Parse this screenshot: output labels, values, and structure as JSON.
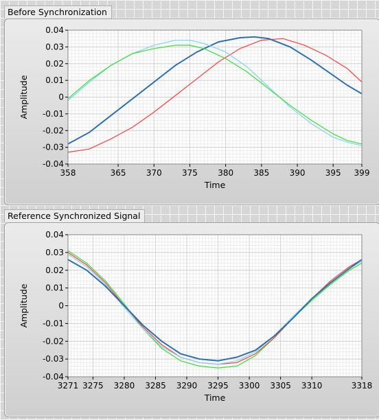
{
  "charts": [
    {
      "label": "Before Synchronization",
      "chart_data": {
        "type": "line",
        "xlabel": "Time",
        "ylabel": "Amplitude",
        "xlim": [
          358,
          399
        ],
        "ylim": [
          -0.04,
          0.04
        ],
        "x_ticks": [
          "358",
          "365",
          "370",
          "375",
          "380",
          "385",
          "390",
          "395",
          "399"
        ],
        "y_ticks": [
          "0.04",
          "0.03",
          "0.02",
          "0.01",
          "0",
          "-0.01",
          "-0.02",
          "-0.03",
          "-0.04"
        ],
        "grid": true,
        "series": [
          {
            "color": "#ff3b3b",
            "x": [
              358,
              361,
              364,
              367,
              370,
              373,
              376,
              379,
              382,
              385,
              388,
              391,
              394,
              397,
              399
            ],
            "y": [
              -0.033,
              -0.031,
              -0.025,
              -0.018,
              -0.009,
              0.001,
              0.011,
              0.021,
              0.029,
              0.034,
              0.035,
              0.031,
              0.025,
              0.017,
              0.009
            ]
          },
          {
            "color": "#2e6fb0",
            "x": [
              358,
              361,
              364,
              367,
              370,
              373,
              376,
              379,
              382,
              384,
              386,
              389,
              392,
              395,
              397,
              399
            ],
            "y": [
              -0.028,
              -0.021,
              -0.011,
              -0.001,
              0.009,
              0.019,
              0.027,
              0.033,
              0.0355,
              0.036,
              0.035,
              0.03,
              0.022,
              0.013,
              0.007,
              0.002
            ]
          },
          {
            "color": "#7fd4f7",
            "x": [
              358,
              361,
              364,
              367,
              370,
              373,
              375,
              377,
              380,
              383,
              386,
              389,
              392,
              395,
              397,
              399
            ],
            "y": [
              -0.002,
              0.009,
              0.019,
              0.026,
              0.031,
              0.034,
              0.034,
              0.032,
              0.027,
              0.018,
              0.006,
              -0.006,
              -0.016,
              -0.024,
              -0.027,
              -0.029
            ]
          },
          {
            "color": "#35e035",
            "x": [
              358,
              361,
              364,
              367,
              370,
              373,
              375,
              377,
              380,
              383,
              386,
              389,
              392,
              395,
              397,
              399
            ],
            "y": [
              -0.001,
              0.01,
              0.019,
              0.026,
              0.029,
              0.031,
              0.031,
              0.029,
              0.023,
              0.015,
              0.005,
              -0.005,
              -0.014,
              -0.022,
              -0.026,
              -0.028
            ]
          }
        ]
      }
    },
    {
      "label": "Reference Synchronized Signal",
      "chart_data": {
        "type": "line",
        "xlabel": "Time",
        "ylabel": "Amplitude",
        "xlim": [
          3271,
          3318
        ],
        "ylim": [
          -0.04,
          0.04
        ],
        "x_ticks": [
          "3271",
          "3275",
          "3280",
          "3285",
          "3290",
          "3295",
          "3300",
          "3305",
          "3310",
          "3318"
        ],
        "y_ticks": [
          "0.04",
          "0.03",
          "0.02",
          "0.01",
          "0",
          "-0.01",
          "-0.02",
          "-0.03",
          "-0.04"
        ],
        "grid": true,
        "series": [
          {
            "color": "#35e035",
            "x": [
              3271,
              3274,
              3277,
              3280,
              3283,
              3286,
              3289,
              3292,
              3295,
              3298,
              3301,
              3304,
              3307,
              3310,
              3313,
              3316,
              3318
            ],
            "y": [
              0.031,
              0.024,
              0.014,
              0.001,
              -0.013,
              -0.024,
              -0.031,
              -0.034,
              -0.035,
              -0.034,
              -0.028,
              -0.018,
              -0.007,
              0.003,
              0.012,
              0.02,
              0.024
            ]
          },
          {
            "color": "#ff3b3b",
            "x": [
              3271,
              3274,
              3277,
              3280,
              3283,
              3286,
              3289,
              3292,
              3295,
              3298,
              3301,
              3304,
              3307,
              3310,
              3313,
              3316,
              3318
            ],
            "y": [
              0.03,
              0.023,
              0.013,
              0.0,
              -0.012,
              -0.022,
              -0.029,
              -0.032,
              -0.033,
              -0.032,
              -0.027,
              -0.018,
              -0.007,
              0.004,
              0.014,
              0.022,
              0.026
            ]
          },
          {
            "color": "#7fd4f7",
            "x": [
              3271,
              3274,
              3277,
              3280,
              3283,
              3286,
              3289,
              3292,
              3295,
              3298,
              3301,
              3304,
              3307,
              3310,
              3313,
              3316,
              3318
            ],
            "y": [
              0.029,
              0.022,
              0.012,
              -0.001,
              -0.013,
              -0.023,
              -0.029,
              -0.032,
              -0.033,
              -0.031,
              -0.026,
              -0.017,
              -0.006,
              0.004,
              0.013,
              0.021,
              0.025
            ]
          },
          {
            "color": "#2e6fb0",
            "x": [
              3271,
              3274,
              3277,
              3280,
              3283,
              3286,
              3289,
              3292,
              3295,
              3298,
              3301,
              3304,
              3307,
              3310,
              3313,
              3316,
              3318
            ],
            "y": [
              0.026,
              0.02,
              0.011,
              0.0,
              -0.011,
              -0.02,
              -0.027,
              -0.03,
              -0.031,
              -0.029,
              -0.025,
              -0.017,
              -0.007,
              0.004,
              0.013,
              0.021,
              0.026
            ]
          }
        ]
      }
    }
  ]
}
